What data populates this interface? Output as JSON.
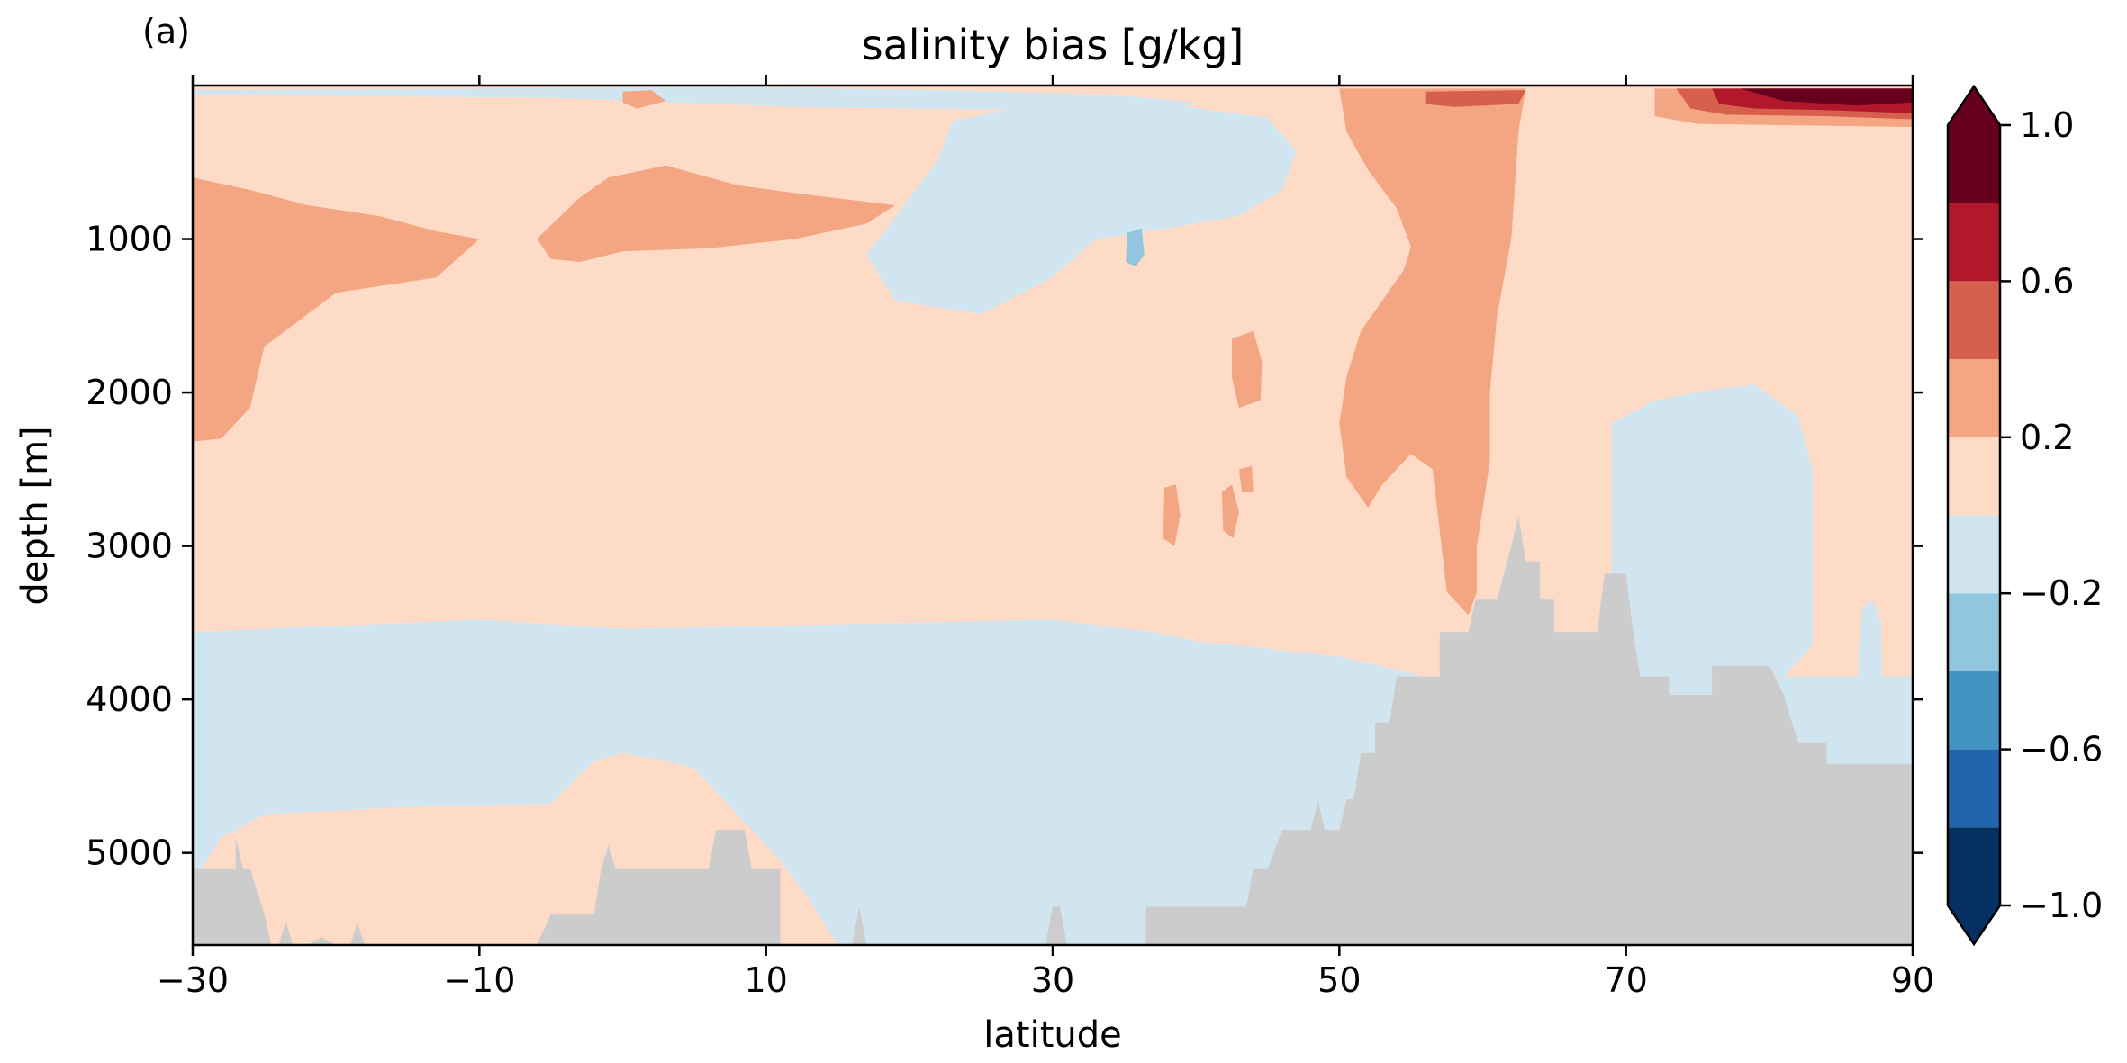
{
  "panel_label": "(a)",
  "chart_data": {
    "type": "heatmap",
    "title": "salinity bias [g/kg]",
    "xlabel": "latitude",
    "ylabel": "depth [m]",
    "xlim": [
      -30,
      90
    ],
    "ylim": [
      5600,
      0
    ],
    "xticks": [
      -30,
      -10,
      10,
      30,
      50,
      70,
      90
    ],
    "xtick_labels": [
      "−30",
      "−10",
      "10",
      "30",
      "50",
      "70",
      "90"
    ],
    "yticks": [
      1000,
      2000,
      3000,
      4000,
      5000
    ],
    "ytick_labels": [
      "1000",
      "2000",
      "3000",
      "4000",
      "5000"
    ],
    "land_color": "#cccccc",
    "colorbar": {
      "levels": [
        -1.0,
        -0.8,
        -0.6,
        -0.4,
        -0.2,
        0.0,
        0.2,
        0.4,
        0.6,
        0.8,
        1.0
      ],
      "colors": [
        "#053061",
        "#2166ac",
        "#4393c3",
        "#92c5de",
        "#d1e5f0",
        "#fddbc7",
        "#f4a582",
        "#d6604d",
        "#b2182b",
        "#67001f"
      ],
      "extend": "both",
      "tick_values": [
        1.0,
        0.6,
        0.2,
        -0.2,
        -0.6,
        -1.0
      ],
      "tick_labels": [
        "1.0",
        "0.6",
        "0.2",
        "−0.2",
        "−0.6",
        "−1.0"
      ]
    },
    "fills": [
      {
        "name": "negative-bias-deep-layer",
        "value": -0.1,
        "pts": [
          [
            -30,
            3560
          ],
          [
            -20,
            3520
          ],
          [
            -10,
            3480
          ],
          [
            0,
            3540
          ],
          [
            10,
            3520
          ],
          [
            20,
            3500
          ],
          [
            30,
            3480
          ],
          [
            37,
            3560
          ],
          [
            40,
            3620
          ],
          [
            50,
            3720
          ],
          [
            56,
            3850
          ],
          [
            90,
            3850
          ],
          [
            90,
            5600
          ],
          [
            -30,
            5600
          ]
        ]
      },
      {
        "name": "positive-bias-lower-tongue",
        "value": 0.1,
        "pts": [
          [
            -30,
            5200
          ],
          [
            -28,
            4900
          ],
          [
            -25,
            4750
          ],
          [
            -15,
            4700
          ],
          [
            -5,
            4680
          ],
          [
            -2,
            4400
          ],
          [
            0,
            4350
          ],
          [
            3,
            4400
          ],
          [
            5,
            4450
          ],
          [
            8,
            4750
          ],
          [
            11,
            5050
          ],
          [
            13,
            5300
          ],
          [
            15,
            5600
          ],
          [
            -30,
            5600
          ]
        ]
      },
      {
        "name": "negative-bias-upper-band",
        "value": -0.1,
        "pts": [
          [
            -30,
            60
          ],
          [
            -5,
            80
          ],
          [
            12,
            140
          ],
          [
            20,
            150
          ],
          [
            35,
            170
          ],
          [
            39,
            140
          ],
          [
            40,
            110
          ],
          [
            34,
            60
          ],
          [
            22,
            30
          ],
          [
            8,
            10
          ],
          [
            -10,
            20
          ],
          [
            -30,
            30
          ]
        ]
      },
      {
        "name": "negative-bias-mid-latitude-lens",
        "value": -0.1,
        "pts": [
          [
            23,
            230
          ],
          [
            29,
            120
          ],
          [
            37,
            110
          ],
          [
            45,
            210
          ],
          [
            47,
            430
          ],
          [
            46,
            680
          ],
          [
            43,
            850
          ],
          [
            38,
            930
          ],
          [
            33,
            1000
          ],
          [
            30,
            1250
          ],
          [
            25,
            1490
          ],
          [
            19,
            1400
          ],
          [
            17,
            1100
          ],
          [
            19,
            860
          ],
          [
            22,
            480
          ]
        ]
      },
      {
        "name": "negative-bias-northern-deep",
        "value": -0.1,
        "pts": [
          [
            76,
            1980
          ],
          [
            79,
            1950
          ],
          [
            82,
            2150
          ],
          [
            83,
            2500
          ],
          [
            83,
            3000
          ],
          [
            83,
            3650
          ],
          [
            81,
            3850
          ],
          [
            75,
            3860
          ],
          [
            70,
            3860
          ],
          [
            68,
            3850
          ],
          [
            69,
            3200
          ],
          [
            69,
            2200
          ],
          [
            72,
            2050
          ]
        ]
      },
      {
        "name": "negative-bias-small-sliver",
        "value": -0.1,
        "pts": [
          [
            86.5,
            3400
          ],
          [
            87.2,
            3350
          ],
          [
            87.8,
            3500
          ],
          [
            87.9,
            4200
          ],
          [
            87,
            4350
          ],
          [
            86.2,
            4100
          ],
          [
            86.2,
            3700
          ]
        ]
      },
      {
        "name": "positive-bias-western-wedge",
        "value": 0.3,
        "pts": [
          [
            -30,
            600
          ],
          [
            -26,
            680
          ],
          [
            -22,
            780
          ],
          [
            -17,
            850
          ],
          [
            -13,
            950
          ],
          [
            -10,
            1000
          ],
          [
            -13,
            1250
          ],
          [
            -20,
            1350
          ],
          [
            -25,
            1700
          ],
          [
            -26,
            2100
          ],
          [
            -28,
            2300
          ],
          [
            -30,
            2320
          ]
        ]
      },
      {
        "name": "positive-bias-subtropical-patch",
        "value": 0.3,
        "pts": [
          [
            -6,
            1000
          ],
          [
            -3,
            730
          ],
          [
            -1,
            600
          ],
          [
            3,
            520
          ],
          [
            8,
            650
          ],
          [
            12,
            700
          ],
          [
            19,
            780
          ],
          [
            17,
            900
          ],
          [
            12,
            1000
          ],
          [
            6,
            1060
          ],
          [
            0,
            1080
          ],
          [
            -3,
            1150
          ],
          [
            -5,
            1130
          ]
        ]
      },
      {
        "name": "positive-bias-small-patch-a",
        "value": 0.3,
        "pts": [
          [
            42.5,
            1650
          ],
          [
            44,
            1600
          ],
          [
            44.6,
            1800
          ],
          [
            44.5,
            2050
          ],
          [
            43,
            2100
          ],
          [
            42.5,
            1900
          ]
        ]
      },
      {
        "name": "positive-bias-small-patch-b",
        "value": 0.3,
        "pts": [
          [
            37.8,
            2620
          ],
          [
            38.6,
            2600
          ],
          [
            38.9,
            2800
          ],
          [
            38.5,
            3000
          ],
          [
            37.7,
            2950
          ]
        ]
      },
      {
        "name": "positive-bias-small-patch-c",
        "value": 0.3,
        "pts": [
          [
            41.8,
            2650
          ],
          [
            42.5,
            2600
          ],
          [
            43,
            2780
          ],
          [
            42.6,
            2950
          ],
          [
            41.9,
            2900
          ]
        ]
      },
      {
        "name": "positive-bias-small-patch-d",
        "value": 0.3,
        "pts": [
          [
            43,
            2500
          ],
          [
            43.9,
            2480
          ],
          [
            44,
            2650
          ],
          [
            43.2,
            2650
          ]
        ]
      },
      {
        "name": "positive-bias-small-patch-e",
        "value": 0.3,
        "pts": [
          [
            0,
            40
          ],
          [
            2,
            30
          ],
          [
            3,
            100
          ],
          [
            1,
            150
          ],
          [
            0,
            110
          ]
        ]
      },
      {
        "name": "positive-bias-northern-column",
        "value": 0.3,
        "pts": [
          [
            50,
            20
          ],
          [
            63,
            20
          ],
          [
            62.5,
            300
          ],
          [
            62,
            1000
          ],
          [
            61,
            1500
          ],
          [
            60.5,
            2000
          ],
          [
            60.5,
            2450
          ],
          [
            59.6,
            3000
          ],
          [
            59.6,
            3300
          ],
          [
            59,
            3450
          ],
          [
            57.5,
            3300
          ],
          [
            57,
            2900
          ],
          [
            56.5,
            2500
          ],
          [
            55,
            2400
          ],
          [
            53,
            2600
          ],
          [
            52,
            2750
          ],
          [
            50.5,
            2550
          ],
          [
            50,
            2200
          ],
          [
            50.5,
            1900
          ],
          [
            51.5,
            1600
          ],
          [
            53,
            1400
          ],
          [
            54.5,
            1200
          ],
          [
            55,
            1050
          ],
          [
            54,
            800
          ],
          [
            52,
            550
          ],
          [
            50.5,
            300
          ]
        ]
      },
      {
        "name": "positive-bias-arctic-surface",
        "value": 0.3,
        "pts": [
          [
            72,
            20
          ],
          [
            90,
            20
          ],
          [
            90,
            270
          ],
          [
            82,
            260
          ],
          [
            75,
            250
          ],
          [
            72,
            200
          ]
        ]
      },
      {
        "name": "positive-bias-arctic-upper",
        "value": 0.5,
        "pts": [
          [
            73.5,
            20
          ],
          [
            90,
            20
          ],
          [
            90,
            220
          ],
          [
            84,
            200
          ],
          [
            77,
            190
          ],
          [
            74.5,
            150
          ]
        ]
      },
      {
        "name": "positive-bias-surface-spot",
        "value": 0.5,
        "pts": [
          [
            56,
            40
          ],
          [
            63,
            30
          ],
          [
            62.5,
            120
          ],
          [
            58,
            140
          ],
          [
            56,
            120
          ]
        ]
      },
      {
        "name": "positive-bias-arctic-strong",
        "value": 0.7,
        "pts": [
          [
            76,
            20
          ],
          [
            90,
            20
          ],
          [
            90,
            180
          ],
          [
            84,
            160
          ],
          [
            79,
            150
          ],
          [
            76.5,
            120
          ]
        ]
      },
      {
        "name": "positive-bias-arctic-extreme",
        "value": 0.9,
        "pts": [
          [
            78,
            20
          ],
          [
            90,
            20
          ],
          [
            90,
            110
          ],
          [
            86,
            130
          ],
          [
            81,
            100
          ]
        ]
      },
      {
        "name": "negative-bias-tiny-lens",
        "value": -0.3,
        "pts": [
          [
            35.2,
            960
          ],
          [
            36.2,
            930
          ],
          [
            36.4,
            1100
          ],
          [
            35.8,
            1180
          ],
          [
            35.1,
            1150
          ]
        ]
      }
    ],
    "bathymetry": [
      [
        -30,
        5600
      ],
      [
        -30,
        5100
      ],
      [
        -27,
        5100
      ],
      [
        -27,
        4900
      ],
      [
        -26.5,
        5100
      ],
      [
        -26,
        5100
      ],
      [
        -25,
        5400
      ],
      [
        -24.5,
        5600
      ],
      [
        -24,
        5600
      ],
      [
        -23.5,
        5450
      ],
      [
        -23,
        5600
      ],
      [
        -22,
        5600
      ],
      [
        -21,
        5550
      ],
      [
        -20,
        5600
      ],
      [
        -19,
        5600
      ],
      [
        -18.5,
        5450
      ],
      [
        -18,
        5600
      ],
      [
        -6,
        5600
      ],
      [
        -5,
        5400
      ],
      [
        -2,
        5400
      ],
      [
        -1.5,
        5100
      ],
      [
        -1,
        4950
      ],
      [
        -0.5,
        5100
      ],
      [
        6,
        5100
      ],
      [
        6.5,
        4850
      ],
      [
        8.5,
        4850
      ],
      [
        9,
        5100
      ],
      [
        11,
        5100
      ],
      [
        11,
        5600
      ],
      [
        16,
        5600
      ],
      [
        16.5,
        5350
      ],
      [
        17,
        5600
      ],
      [
        29.5,
        5600
      ],
      [
        30,
        5350
      ],
      [
        30.5,
        5350
      ],
      [
        31,
        5600
      ],
      [
        36.5,
        5600
      ],
      [
        36.5,
        5350
      ],
      [
        43.5,
        5350
      ],
      [
        44,
        5100
      ],
      [
        45,
        5100
      ],
      [
        46,
        4850
      ],
      [
        48,
        4850
      ],
      [
        48.5,
        4650
      ],
      [
        49,
        4850
      ],
      [
        50,
        4850
      ],
      [
        50.5,
        4650
      ],
      [
        51,
        4650
      ],
      [
        51.5,
        4350
      ],
      [
        52.5,
        4350
      ],
      [
        52.5,
        4150
      ],
      [
        53.5,
        4150
      ],
      [
        54,
        3850
      ],
      [
        57,
        3850
      ],
      [
        57,
        3560
      ],
      [
        59,
        3560
      ],
      [
        59.5,
        3350
      ],
      [
        61,
        3350
      ],
      [
        62,
        3000
      ],
      [
        62.5,
        2800
      ],
      [
        63,
        3100
      ],
      [
        64,
        3100
      ],
      [
        64,
        3350
      ],
      [
        65,
        3350
      ],
      [
        65,
        3560
      ],
      [
        68,
        3560
      ],
      [
        68.5,
        3180
      ],
      [
        70,
        3180
      ],
      [
        70.5,
        3560
      ],
      [
        71,
        3850
      ],
      [
        73,
        3850
      ],
      [
        73,
        3970
      ],
      [
        76,
        3970
      ],
      [
        76,
        3780
      ],
      [
        80,
        3780
      ],
      [
        81,
        3970
      ],
      [
        82,
        4280
      ],
      [
        84,
        4280
      ],
      [
        84,
        4420
      ],
      [
        90,
        4420
      ],
      [
        90,
        5600
      ]
    ]
  }
}
